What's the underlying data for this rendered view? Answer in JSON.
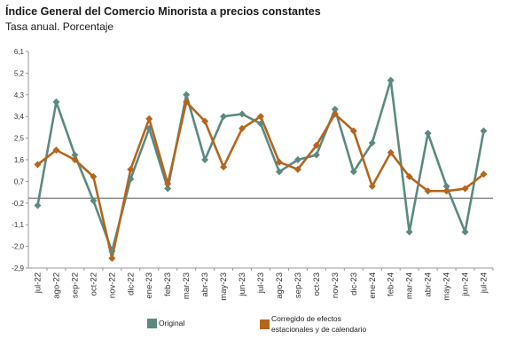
{
  "title": "Índice General del Comercio Minorista a precios constantes",
  "subtitle": "Tasa anual. Porcentaje",
  "colors": {
    "original": "#5b8a80",
    "corregido": "#b5651d",
    "zero_line": "#888888",
    "axis": "#999999"
  },
  "legend": {
    "original_label": "Original",
    "corregido_label_line1": "Corregido de efectos",
    "corregido_label_line2": "estacionales y de calendario"
  },
  "chart_data": {
    "type": "line",
    "title": "Índice General del Comercio Minorista a precios constantes",
    "subtitle": "Tasa anual. Porcentaje",
    "xlabel": "",
    "ylabel": "",
    "ylim": [
      -2.9,
      6.1
    ],
    "yticks": [
      "6,1",
      "5,2",
      "4,3",
      "3,4",
      "2,5",
      "1,6",
      "0,7",
      "-0,2",
      "-1,1",
      "-2,0",
      "-2,9"
    ],
    "categories": [
      "jul-22",
      "ago-22",
      "sep-22",
      "oct-22",
      "nov-22",
      "dic-22",
      "ene-23",
      "feb-23",
      "mar-23",
      "abr-23",
      "may-23",
      "jun-23",
      "jul-23",
      "ago-23",
      "sep-23",
      "oct-23",
      "nov-23",
      "dic-23",
      "ene-24",
      "feb-24",
      "mar-24",
      "abr-24",
      "may-24",
      "jun-24",
      "jul-24"
    ],
    "series": [
      {
        "name": "Original",
        "values": [
          -0.3,
          4.0,
          1.8,
          -0.1,
          -2.2,
          0.8,
          2.9,
          0.4,
          4.3,
          1.6,
          3.4,
          3.5,
          3.1,
          1.1,
          1.6,
          1.8,
          3.7,
          1.1,
          2.3,
          4.9,
          -1.4,
          2.7,
          0.5,
          -1.4,
          2.8
        ]
      },
      {
        "name": "Corregido de efectos estacionales y de calendario",
        "values": [
          1.4,
          2.0,
          1.6,
          0.9,
          -2.5,
          1.2,
          3.3,
          0.6,
          4.0,
          3.2,
          1.3,
          2.9,
          3.4,
          1.5,
          1.2,
          2.2,
          3.5,
          2.8,
          0.5,
          1.9,
          0.9,
          0.3,
          0.3,
          0.4,
          1.0
        ]
      }
    ],
    "zero_line": 0,
    "grid": false,
    "legend_position": "bottom"
  }
}
